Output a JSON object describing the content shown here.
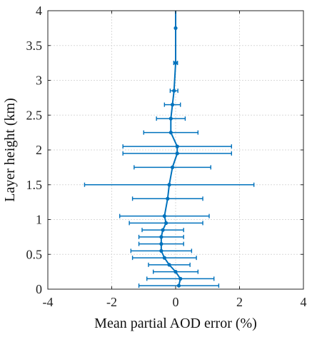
{
  "chart_data": {
    "type": "line",
    "title": "",
    "xlabel": "Mean partial AOD error (%)",
    "ylabel": "Layer height (km)",
    "xlim": [
      -4,
      4
    ],
    "ylim": [
      0,
      4
    ],
    "xticks": [
      "-4",
      "-2",
      "0",
      "2",
      "4"
    ],
    "yticks": [
      "0",
      "0.5",
      "1",
      "1.5",
      "2",
      "2.5",
      "3",
      "3.5",
      "4"
    ],
    "grid": true,
    "legend": "none",
    "colors": {
      "series": "#0072BD",
      "grid": "#d9d9d9",
      "axis": "#262626"
    },
    "series": [
      {
        "points": [
          {
            "y": 0.05,
            "x": 0.1,
            "err": 1.25
          },
          {
            "y": 0.15,
            "x": 0.15,
            "err": 1.05
          },
          {
            "y": 0.25,
            "x": 0.0,
            "err": 0.7
          },
          {
            "y": 0.35,
            "x": -0.2,
            "err": 0.65
          },
          {
            "y": 0.45,
            "x": -0.35,
            "err": 1.0
          },
          {
            "y": 0.55,
            "x": -0.45,
            "err": 0.95
          },
          {
            "y": 0.65,
            "x": -0.45,
            "err": 0.7
          },
          {
            "y": 0.75,
            "x": -0.45,
            "err": 0.7
          },
          {
            "y": 0.85,
            "x": -0.4,
            "err": 0.65
          },
          {
            "y": 0.95,
            "x": -0.3,
            "err": 1.15
          },
          {
            "y": 1.05,
            "x": -0.35,
            "err": 1.4
          },
          {
            "y": 1.3,
            "x": -0.25,
            "err": 1.1
          },
          {
            "y": 1.5,
            "x": -0.2,
            "err": 2.65
          },
          {
            "y": 1.75,
            "x": -0.1,
            "err": 1.2
          },
          {
            "y": 1.95,
            "x": 0.05,
            "err": 1.7
          },
          {
            "y": 2.05,
            "x": 0.05,
            "err": 1.7
          },
          {
            "y": 2.25,
            "x": -0.15,
            "err": 0.85
          },
          {
            "y": 2.45,
            "x": -0.15,
            "err": 0.45
          },
          {
            "y": 2.65,
            "x": -0.1,
            "err": 0.25
          },
          {
            "y": 2.85,
            "x": -0.05,
            "err": 0.12
          },
          {
            "y": 3.25,
            "x": 0.0,
            "err": 0.06
          },
          {
            "y": 3.75,
            "x": 0.0,
            "err": 0.0
          },
          {
            "y": 4.0,
            "x": 0.0,
            "err": 0.0
          }
        ]
      }
    ]
  }
}
